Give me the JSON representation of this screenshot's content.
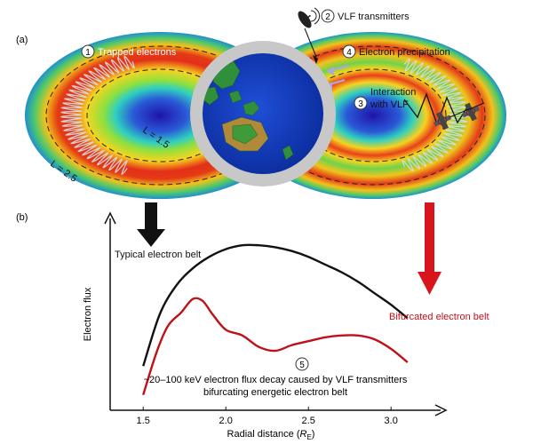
{
  "panel_a": {
    "label": "(a)",
    "callouts": [
      {
        "num": "1",
        "text": "Trapped electrons"
      },
      {
        "num": "2",
        "text": "VLF transmitters"
      },
      {
        "num": "4",
        "text": "Electron precipitation"
      },
      {
        "num": "3",
        "line1": "Interaction",
        "line2": "with VLF"
      }
    ],
    "shell_labels": {
      "outer": "L = 2.5",
      "inner": "L = 1.5"
    }
  },
  "panel_b": {
    "label": "(b)",
    "typical_label": "Typical electron belt",
    "bifurcated_label": "Bifurcated electron belt",
    "annotation_num": "5",
    "annotation_line1": "~20–100 keV electron flux decay caused by VLF transmitters",
    "annotation_line2": "bifurcating energetic electron belt",
    "ylabel": "Electron flux",
    "xlabel_main": "Radial distance (",
    "xlabel_var": "R",
    "xlabel_sub": "E",
    "xlabel_end": ")"
  },
  "chart_data": {
    "type": "line",
    "xlabel": "Radial distance (R_E)",
    "ylabel": "Electron flux",
    "xlim": [
      1.3,
      3.3
    ],
    "ylim": [
      0,
      1
    ],
    "xticks": [
      1.5,
      2.0,
      2.5,
      3.0
    ],
    "xtick_labels": [
      "1.5",
      "2.0",
      "2.5",
      "3.0"
    ],
    "series": [
      {
        "name": "Typical electron belt",
        "color": "#111111",
        "x": [
          1.5,
          1.6,
          1.7,
          1.8,
          1.9,
          2.0,
          2.1,
          2.2,
          2.3,
          2.4,
          2.5,
          2.6,
          2.7,
          2.8,
          2.9,
          3.0,
          3.1
        ],
        "y": [
          0.23,
          0.5,
          0.65,
          0.74,
          0.8,
          0.84,
          0.86,
          0.86,
          0.85,
          0.83,
          0.8,
          0.76,
          0.72,
          0.67,
          0.61,
          0.55,
          0.48
        ]
      },
      {
        "name": "Bifurcated electron belt",
        "color": "#c0101a",
        "x": [
          1.5,
          1.58,
          1.65,
          1.73,
          1.8,
          1.86,
          1.92,
          2.0,
          2.1,
          2.2,
          2.3,
          2.4,
          2.5,
          2.6,
          2.7,
          2.8,
          2.9,
          3.0,
          3.1
        ],
        "y": [
          0.08,
          0.3,
          0.44,
          0.51,
          0.58,
          0.57,
          0.5,
          0.42,
          0.39,
          0.33,
          0.31,
          0.34,
          0.36,
          0.38,
          0.39,
          0.39,
          0.37,
          0.32,
          0.25
        ]
      }
    ]
  }
}
